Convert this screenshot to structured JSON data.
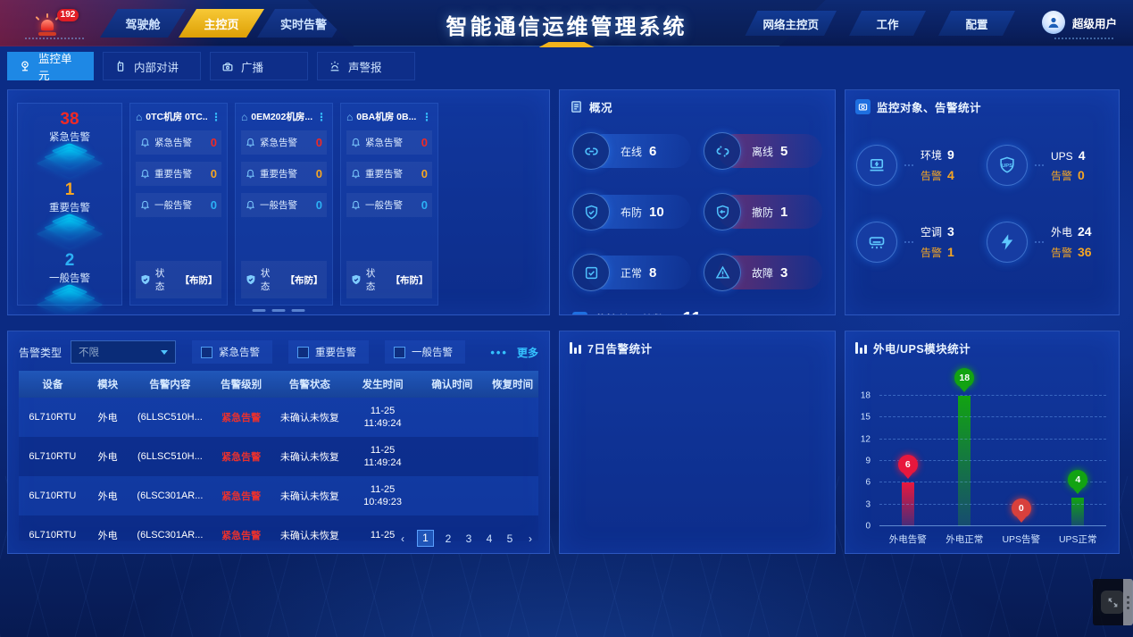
{
  "header": {
    "alarm_badge": "192",
    "nav": [
      {
        "label": "驾驶舱"
      },
      {
        "label": "主控页"
      },
      {
        "label": "实时告警"
      }
    ],
    "title": "智能通信运维管理系统",
    "right_nav": [
      {
        "label": "网络主控页"
      },
      {
        "label": "工作"
      },
      {
        "label": "配置"
      }
    ],
    "user_name": "超级用户"
  },
  "tabs": [
    {
      "label": "监控单元"
    },
    {
      "label": "内部对讲"
    },
    {
      "label": "广播"
    },
    {
      "label": "声警报"
    }
  ],
  "alarm_summary": [
    {
      "label": "紧急告警",
      "value": "38"
    },
    {
      "label": "重要告警",
      "value": "1"
    },
    {
      "label": "一般告警",
      "value": "2"
    }
  ],
  "unit_cards": [
    {
      "name": "0TC机房 0TC...",
      "kebab": "⋮",
      "rows": [
        {
          "label": "紧急告警",
          "value": "0"
        },
        {
          "label": "重要告警",
          "value": "0"
        },
        {
          "label": "一般告警",
          "value": "0"
        }
      ],
      "status_label": "状态",
      "status_value": "【布防】"
    },
    {
      "name": "0EM202机房...",
      "kebab": "⋮",
      "rows": [
        {
          "label": "紧急告警",
          "value": "0"
        },
        {
          "label": "重要告警",
          "value": "0"
        },
        {
          "label": "一般告警",
          "value": "0"
        }
      ],
      "status_label": "状态",
      "status_value": "【布防】"
    },
    {
      "name": "0BA机房 0B...",
      "kebab": "⋮",
      "rows": [
        {
          "label": "紧急告警",
          "value": "0"
        },
        {
          "label": "重要告警",
          "value": "0"
        },
        {
          "label": "一般告警",
          "value": "0"
        }
      ],
      "status_label": "状态",
      "status_value": "【布防】"
    }
  ],
  "overview": {
    "title": "概况",
    "stats": [
      {
        "label": "在线",
        "value": "6",
        "tone": "blue",
        "icon": "link-icon"
      },
      {
        "label": "离线",
        "value": "5",
        "tone": "red",
        "icon": "link-broken-icon"
      },
      {
        "label": "布防",
        "value": "10",
        "tone": "blue",
        "icon": "shield-check-icon"
      },
      {
        "label": "撤防",
        "value": "1",
        "tone": "red",
        "icon": "shield-off-icon"
      },
      {
        "label": "正常",
        "value": "8",
        "tone": "blue",
        "icon": "checkbox-icon"
      },
      {
        "label": "故障",
        "value": "3",
        "tone": "red",
        "icon": "warning-icon"
      }
    ],
    "total_label": "监控单元总数",
    "total_arrow": "›",
    "total_value": "11"
  },
  "object_stats": {
    "title": "监控对象、告警统计",
    "items": [
      {
        "icon": "environment-icon",
        "label": "环境",
        "value": "9",
        "alarm_label": "告警",
        "alarm_value": "4"
      },
      {
        "icon": "ups-icon",
        "label": "UPS",
        "value": "4",
        "alarm_label": "告警",
        "alarm_value": "0"
      },
      {
        "icon": "ac-icon",
        "label": "空调",
        "value": "3",
        "alarm_label": "告警",
        "alarm_value": "1"
      },
      {
        "icon": "power-icon",
        "label": "外电",
        "value": "24",
        "alarm_label": "告警",
        "alarm_value": "36"
      }
    ]
  },
  "alarm_table": {
    "filter_label": "告警类型",
    "filter_value": "不限",
    "checkboxes": [
      {
        "label": "紧急告警"
      },
      {
        "label": "重要告警"
      },
      {
        "label": "一般告警"
      }
    ],
    "more_dots": "•••",
    "more_label": "更多",
    "columns": [
      "设备",
      "模块",
      "告警内容",
      "告警级别",
      "告警状态",
      "发生时间",
      "确认时间",
      "恢复时间"
    ],
    "rows": [
      {
        "device": "6L710RTU",
        "module": "外电",
        "content": "(6LLSC510H...",
        "level": "紧急告警",
        "status": "未确认未恢复",
        "occur_date": "11-25",
        "occur_time": "11:49:24",
        "confirm": "",
        "recover": ""
      },
      {
        "device": "6L710RTU",
        "module": "外电",
        "content": "(6LLSC510H...",
        "level": "紧急告警",
        "status": "未确认未恢复",
        "occur_date": "11-25",
        "occur_time": "11:49:24",
        "confirm": "",
        "recover": ""
      },
      {
        "device": "6L710RTU",
        "module": "外电",
        "content": "(6LSC301AR...",
        "level": "紧急告警",
        "status": "未确认未恢复",
        "occur_date": "11-25",
        "occur_time": "10:49:23",
        "confirm": "",
        "recover": ""
      },
      {
        "device": "6L710RTU",
        "module": "外电",
        "content": "(6LSC301AR...",
        "level": "紧急告警",
        "status": "未确认未恢复",
        "occur_date": "11-25",
        "occur_time": "",
        "confirm": "",
        "recover": ""
      }
    ],
    "pagination": {
      "prev": "‹",
      "pages": [
        "1",
        "2",
        "3",
        "4",
        "5"
      ],
      "current": "1",
      "next": "›"
    }
  },
  "seven_day_panel": {
    "title": "7日告警统计"
  },
  "module_panel": {
    "title": "外电/UPS模块统计"
  },
  "chart_data": {
    "type": "bar",
    "title": "外电/UPS模块统计",
    "categories": [
      "外电告警",
      "外电正常",
      "UPS告警",
      "UPS正常"
    ],
    "values": [
      6,
      18,
      0,
      4
    ],
    "colors": [
      "#e8173d",
      "#12a312",
      "#d8403c",
      "#12a312"
    ],
    "ylim": [
      0,
      18
    ],
    "yticks": [
      0,
      3,
      6,
      9,
      12,
      15,
      18
    ],
    "xlabel": "",
    "ylabel": "",
    "grid": "dashed",
    "legend_position": "none"
  }
}
